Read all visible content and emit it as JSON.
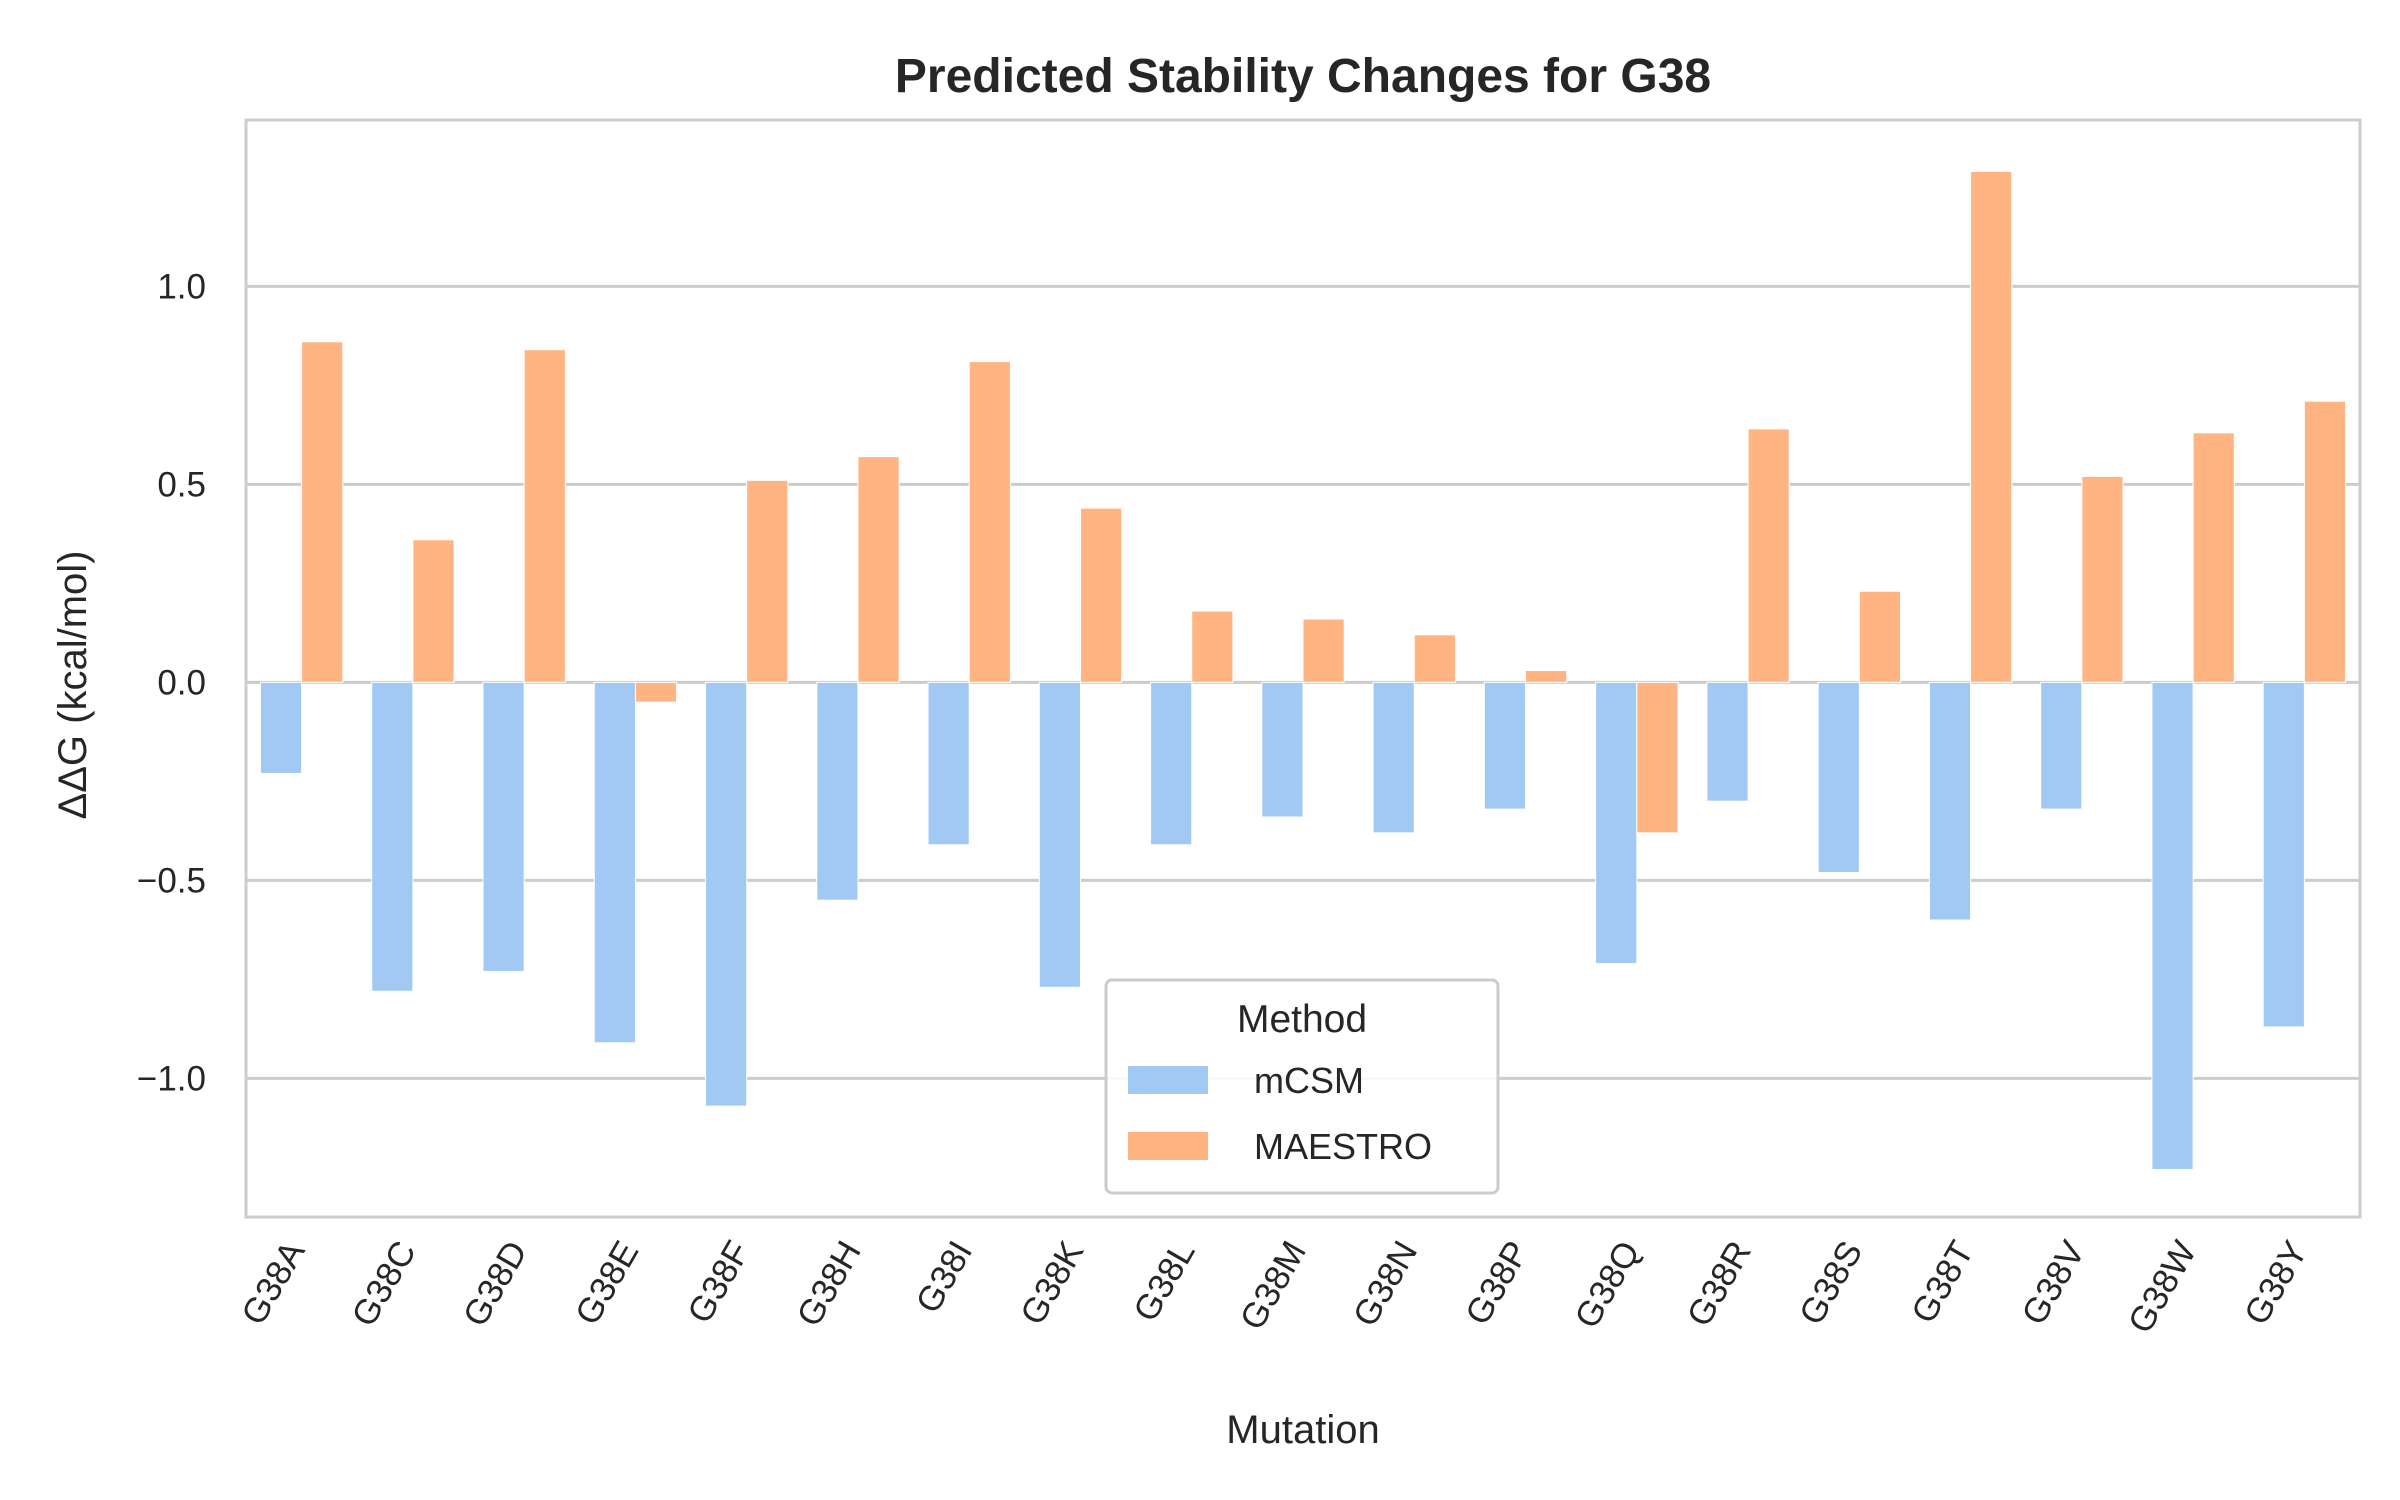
{
  "chart_data": {
    "type": "bar",
    "title": "Predicted Stability Changes for G38",
    "xlabel": "Mutation",
    "ylabel": "ΔΔG (kcal/mol)",
    "ylim": [
      -1.35,
      1.42
    ],
    "yticks": [
      1.0,
      0.5,
      0.0,
      -0.5,
      -1.0
    ],
    "ytick_labels": [
      "1.0",
      "0.5",
      "0.0",
      "−0.5",
      "−1.0"
    ],
    "grid": "horizontal",
    "legend": {
      "title": "Method",
      "placement": "lower-center"
    },
    "categories": [
      "G38A",
      "G38C",
      "G38D",
      "G38E",
      "G38F",
      "G38H",
      "G38I",
      "G38K",
      "G38L",
      "G38M",
      "G38N",
      "G38P",
      "G38Q",
      "G38R",
      "G38S",
      "G38T",
      "G38V",
      "G38W",
      "G38Y"
    ],
    "series": [
      {
        "name": "mCSM",
        "color": "#a1c9f4",
        "values": [
          -0.23,
          -0.78,
          -0.73,
          -0.91,
          -1.07,
          -0.55,
          -0.41,
          -0.77,
          -0.41,
          -0.34,
          -0.38,
          -0.32,
          -0.71,
          -0.3,
          -0.48,
          -0.6,
          -0.32,
          -1.23,
          -0.87
        ]
      },
      {
        "name": "MAESTRO",
        "color": "#ffb482",
        "values": [
          0.86,
          0.36,
          0.84,
          -0.05,
          0.51,
          0.57,
          0.81,
          0.44,
          0.18,
          0.16,
          0.12,
          0.03,
          -0.38,
          0.64,
          0.23,
          1.29,
          0.52,
          0.63,
          0.71
        ]
      }
    ]
  }
}
